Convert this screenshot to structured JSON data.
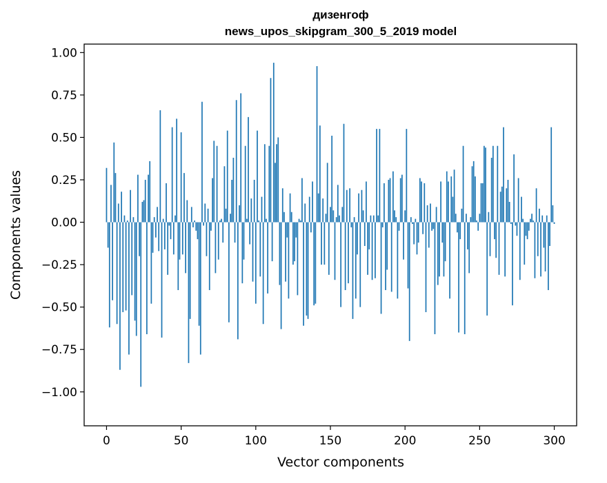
{
  "chart_data": {
    "type": "bar",
    "title": [
      "дизенгоф",
      "news_upos_skipgram_300_5_2019 model"
    ],
    "xlabel": "Vector components",
    "ylabel": "Components values",
    "xlim": [
      -15,
      315
    ],
    "ylim": [
      -1.2,
      1.05
    ],
    "xticks": [
      0,
      50,
      100,
      150,
      200,
      250,
      300
    ],
    "yticks": [
      -1.0,
      -0.75,
      -0.5,
      -0.25,
      0.0,
      0.25,
      0.5,
      0.75,
      1.0
    ],
    "ytick_labels": [
      "−1.00",
      "−0.75",
      "−0.50",
      "−0.25",
      "0.00",
      "0.25",
      "0.50",
      "0.75",
      "1.00"
    ],
    "xtick_labels": [
      "0",
      "50",
      "100",
      "150",
      "200",
      "250",
      "300"
    ],
    "grid": false,
    "bar_color": "#1f77b4",
    "x": "0..299",
    "values": [
      0.32,
      -0.15,
      -0.62,
      0.22,
      -0.46,
      0.47,
      0.29,
      -0.6,
      0.11,
      -0.87,
      0.18,
      -0.53,
      0.04,
      -0.52,
      0.01,
      -0.78,
      0.19,
      -0.43,
      0.03,
      -0.58,
      -0.67,
      0.28,
      -0.2,
      -0.97,
      0.12,
      0.13,
      0.25,
      -0.66,
      0.28,
      0.36,
      -0.48,
      -0.18,
      0.03,
      -0.09,
      0.09,
      -0.17,
      0.66,
      -0.68,
      0.02,
      -0.16,
      0.23,
      -0.31,
      -0.02,
      -0.1,
      0.56,
      -0.19,
      0.04,
      0.61,
      -0.4,
      -0.22,
      0.53,
      -0.19,
      0.29,
      -0.3,
      0.13,
      -0.83,
      -0.57,
      0.09,
      -0.03,
      0.01,
      -0.05,
      -0.1,
      -0.61,
      -0.78,
      0.71,
      -0.02,
      0.11,
      -0.2,
      0.08,
      -0.4,
      -0.05,
      0.26,
      0.48,
      -0.3,
      0.45,
      -0.22,
      0.01,
      0.02,
      -0.12,
      0.33,
      0.08,
      0.54,
      -0.59,
      0.05,
      0.25,
      0.38,
      -0.12,
      0.72,
      -0.69,
      0.1,
      0.76,
      -0.36,
      -0.22,
      0.45,
      0.02,
      0.62,
      -0.13,
      0.14,
      -0.35,
      0.25,
      -0.48,
      0.54,
      0.01,
      -0.32,
      0.15,
      -0.6,
      0.46,
      0.02,
      -0.42,
      0.45,
      0.85,
      -0.23,
      0.94,
      0.35,
      0.46,
      0.5,
      -0.37,
      -0.63,
      0.2,
      0.06,
      -0.35,
      -0.09,
      -0.45,
      0.17,
      0.06,
      -0.25,
      -0.23,
      -0.09,
      -0.43,
      0.02,
      0.01,
      0.26,
      -0.61,
      0.11,
      -0.55,
      -0.57,
      0.15,
      -0.06,
      0.24,
      -0.49,
      -0.48,
      0.92,
      0.17,
      0.57,
      -0.25,
      0.14,
      -0.25,
      0.05,
      0.35,
      -0.31,
      0.09,
      0.51,
      0.07,
      -0.34,
      0.03,
      0.22,
      0.04,
      -0.5,
      0.09,
      0.58,
      -0.4,
      0.19,
      -0.36,
      0.2,
      -0.03,
      -0.57,
      0.03,
      -0.45,
      -0.19,
      0.17,
      -0.5,
      0.19,
      0.07,
      -0.14,
      0.24,
      -0.31,
      -0.16,
      0.04,
      -0.34,
      0.04,
      -0.33,
      0.55,
      0.04,
      0.55,
      -0.54,
      -0.03,
      0.23,
      -0.4,
      -0.28,
      0.25,
      0.26,
      -0.41,
      0.3,
      0.07,
      0.03,
      -0.45,
      -0.05,
      0.26,
      0.28,
      -0.22,
      0.07,
      0.55,
      -0.39,
      -0.7,
      0.03,
      -0.01,
      -0.13,
      0.02,
      -0.19,
      -0.12,
      0.26,
      0.24,
      -0.07,
      0.23,
      -0.53,
      0.1,
      -0.15,
      0.11,
      -0.05,
      -0.04,
      -0.66,
      0.09,
      -0.37,
      -0.32,
      0.24,
      -0.12,
      -0.32,
      -0.23,
      0.3,
      0.24,
      -0.45,
      0.27,
      0.15,
      0.31,
      0.05,
      -0.06,
      -0.65,
      -0.1,
      0.08,
      0.45,
      -0.66,
      0.05,
      -0.16,
      -0.3,
      0.03,
      0.33,
      0.36,
      0.27,
      0.01,
      -0.05,
      0.05,
      0.23,
      0.23,
      0.45,
      0.44,
      -0.55,
      0.06,
      -0.2,
      0.38,
      0.45,
      -0.1,
      -0.21,
      0.45,
      -0.31,
      0.18,
      0.21,
      0.56,
      -0.32,
      0.2,
      0.25,
      0.12,
      -0.01,
      -0.49,
      0.4,
      -0.02,
      -0.08,
      0.26,
      -0.34,
      0.15,
      0.02,
      -0.25,
      -0.08,
      -0.1,
      -0.05,
      0.02,
      0.05,
      0.01,
      -0.33,
      0.2,
      -0.2,
      0.08,
      -0.32,
      0.04,
      -0.15,
      -0.29,
      0.04,
      -0.4,
      -0.14,
      0.56,
      0.1,
      -0.01
    ]
  }
}
